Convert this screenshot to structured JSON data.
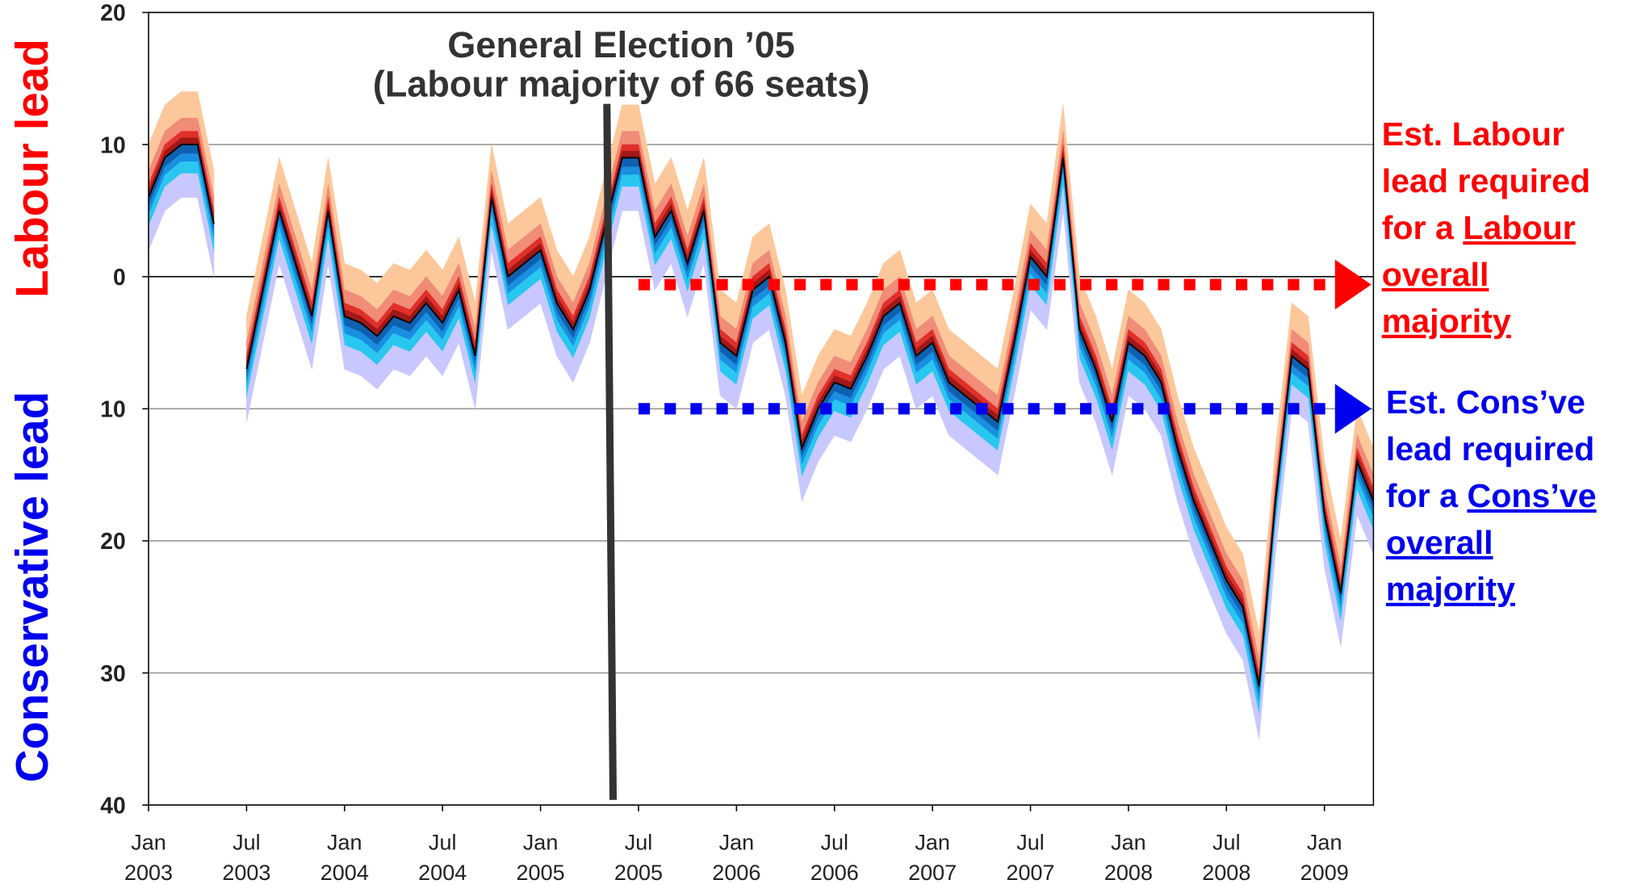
{
  "chart_data": {
    "type": "fan",
    "annotation": {
      "x": "2005-05",
      "lines": [
        "General Election ’05",
        "(Labour majority of 66 seats)"
      ],
      "color": "#333333"
    },
    "y_labels": [
      {
        "text": "Labour lead",
        "color": "#ff0000"
      },
      {
        "text": "Conservative lead",
        "color": "#0000ee"
      }
    ],
    "x": [
      "2003-01",
      "2003-02",
      "2003-03",
      "2003-04",
      "2003-05",
      "2003-06",
      "2003-07",
      "2003-08",
      "2003-09",
      "2003-10",
      "2003-11",
      "2003-12",
      "2004-01",
      "2004-02",
      "2004-03",
      "2004-04",
      "2004-05",
      "2004-06",
      "2004-07",
      "2004-08",
      "2004-09",
      "2004-10",
      "2004-11",
      "2004-12",
      "2005-01",
      "2005-02",
      "2005-03",
      "2005-04",
      "2005-05",
      "2005-06",
      "2005-07",
      "2005-08",
      "2005-09",
      "2005-10",
      "2005-11",
      "2005-12",
      "2006-01",
      "2006-02",
      "2006-03",
      "2006-04",
      "2006-05",
      "2006-06",
      "2006-07",
      "2006-08",
      "2006-09",
      "2006-10",
      "2006-11",
      "2006-12",
      "2007-01",
      "2007-02",
      "2007-03",
      "2007-04",
      "2007-05",
      "2007-06",
      "2007-07",
      "2007-08",
      "2007-09",
      "2007-10",
      "2007-11",
      "2007-12",
      "2008-01",
      "2008-02",
      "2008-03",
      "2008-04",
      "2008-05",
      "2008-06",
      "2008-07",
      "2008-08",
      "2008-09",
      "2008-10",
      "2008-11",
      "2008-12",
      "2009-01",
      "2009-02",
      "2009-03",
      "2009-04"
    ],
    "values": [
      6,
      9,
      10,
      10,
      4,
      null,
      -7,
      -1,
      5,
      1,
      -3,
      5,
      -3,
      -3.5,
      -4.5,
      -3,
      -3.5,
      -2,
      -3.5,
      -1,
      -6,
      6,
      0,
      1,
      2,
      -2,
      -4,
      -1,
      4,
      9,
      9,
      3,
      5,
      1,
      5,
      -5,
      -6,
      -1,
      0,
      -5,
      -13,
      -10,
      -8,
      -8.5,
      -6,
      -3,
      -2,
      -6,
      -5,
      -8,
      -9,
      -10,
      -11,
      -5,
      1.5,
      0,
      9,
      -4,
      -7,
      -11,
      -5,
      -6,
      -8,
      -13,
      -17,
      -20,
      -23,
      -25,
      -31,
      -17,
      -6,
      -7,
      -18,
      -24,
      -14,
      -17
    ],
    "color": "#000000",
    "bands": [
      {
        "high": 4,
        "low": 2,
        "color": "#fcc89b"
      },
      {
        "high": 2,
        "low": 1,
        "color": "#f08c78"
      },
      {
        "high": 1,
        "low": 0.5,
        "color": "#e0302a"
      },
      {
        "high": 0.5,
        "low": 0,
        "color": "#a01818"
      },
      {
        "high": 0,
        "low": -0.7,
        "color": "#1060b0"
      },
      {
        "high": -0.7,
        "low": -1.3,
        "color": "#1a8ee0"
      },
      {
        "high": -1.3,
        "low": -2.2,
        "color": "#29c6f0"
      },
      {
        "high": -2.2,
        "low": -4,
        "color": "#c8c8ff"
      }
    ],
    "ref_lines": [
      {
        "value": -0.6,
        "start": "2005-07",
        "color": "#ff0000",
        "label": [
          [
            {
              "text": "Est. Labour"
            }
          ],
          [
            {
              "text": "lead  required"
            }
          ],
          [
            {
              "text": "for a "
            },
            {
              "text": "Labour",
              "underline": true
            }
          ],
          [
            {
              "text": "overall",
              "underline": true
            }
          ],
          [
            {
              "text": "majority",
              "underline": true
            }
          ]
        ]
      },
      {
        "value": -10,
        "start": "2005-07",
        "color": "#0000ee",
        "label": [
          [
            {
              "text": "Est. Cons’ve"
            }
          ],
          [
            {
              "text": "lead required"
            }
          ],
          [
            {
              "text": "for a "
            },
            {
              "text": "Cons’ve",
              "underline": true
            }
          ],
          [
            {
              "text": "overall",
              "underline": true
            }
          ],
          [
            {
              "text": "majority",
              "underline": true
            }
          ]
        ]
      }
    ],
    "xlim": [
      "2003-01",
      "2009-04"
    ],
    "xticks": [
      {
        "value": "2003-01",
        "month": "Jan",
        "year": "2003"
      },
      {
        "value": "2003-07",
        "month": "Jul",
        "year": "2003"
      },
      {
        "value": "2004-01",
        "month": "Jan",
        "year": "2004"
      },
      {
        "value": "2004-07",
        "month": "Jul",
        "year": "2004"
      },
      {
        "value": "2005-01",
        "month": "Jan",
        "year": "2005"
      },
      {
        "value": "2005-07",
        "month": "Jul",
        "year": "2005"
      },
      {
        "value": "2006-01",
        "month": "Jan",
        "year": "2006"
      },
      {
        "value": "2006-07",
        "month": "Jul",
        "year": "2006"
      },
      {
        "value": "2007-01",
        "month": "Jan",
        "year": "2007"
      },
      {
        "value": "2007-07",
        "month": "Jul",
        "year": "2007"
      },
      {
        "value": "2008-01",
        "month": "Jan",
        "year": "2008"
      },
      {
        "value": "2008-07",
        "month": "Jul",
        "year": "2008"
      },
      {
        "value": "2009-01",
        "month": "Jan",
        "year": "2009"
      }
    ],
    "ylim": [
      -40,
      20
    ],
    "yticks": [
      20,
      10,
      0,
      {
        "value": -10,
        "label": "10"
      },
      {
        "value": -20,
        "label": "20"
      },
      {
        "value": -30,
        "label": "30"
      },
      {
        "value": -40,
        "label": "40"
      }
    ],
    "grid": true
  }
}
